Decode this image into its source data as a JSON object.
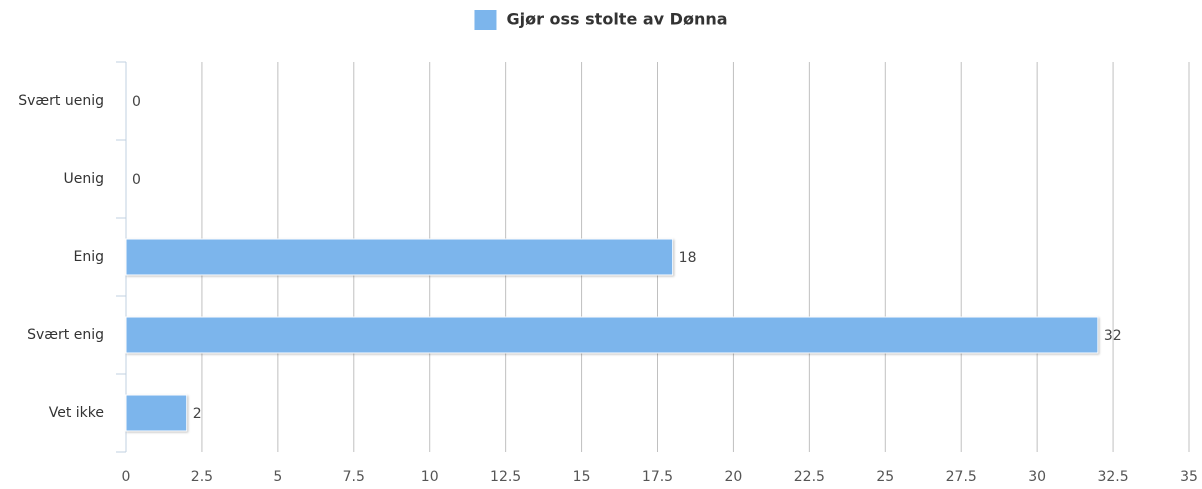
{
  "chart_data": {
    "type": "hbar",
    "categories": [
      "Svært uenig",
      "Uenig",
      "Enig",
      "Svært enig",
      "Vet ikke"
    ],
    "series": [
      {
        "name": "Gjør oss stolte av Dønna",
        "color": "#7cb5ec",
        "values": [
          0,
          0,
          18,
          32,
          2
        ]
      }
    ],
    "xlim": [
      0,
      35
    ],
    "xticks": [
      0,
      2.5,
      5,
      7.5,
      10,
      12.5,
      15,
      17.5,
      20,
      22.5,
      25,
      27.5,
      30,
      32.5,
      35
    ],
    "grid": true,
    "legend": "top"
  }
}
